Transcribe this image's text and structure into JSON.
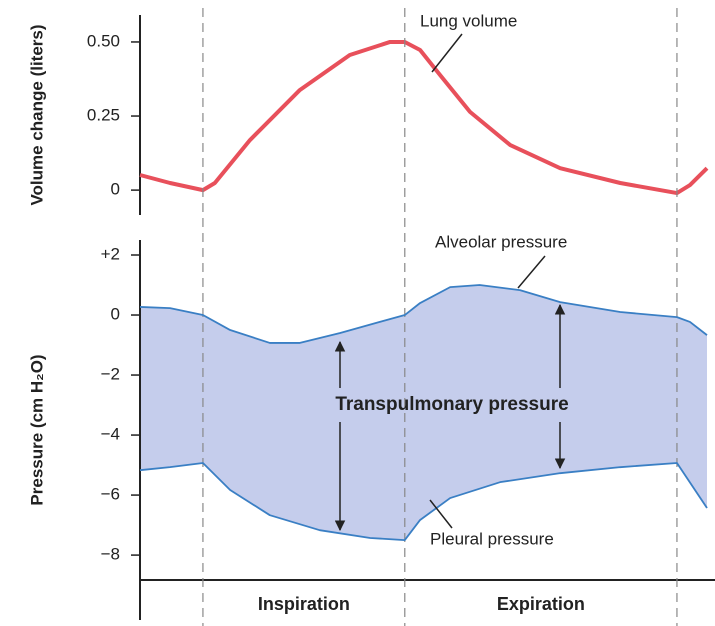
{
  "chart_data": [
    {
      "type": "line",
      "ylabel": "Volume change (liters)",
      "xlim": [
        0,
        100
      ],
      "ylim": [
        -0.084,
        0.591
      ],
      "yticks": [
        0,
        0.25,
        {
          "value": 0.5,
          "label": "0.50"
        }
      ],
      "series": [
        {
          "name": "Lung volume",
          "color": "#e8505b",
          "x": [
            0,
            5.3,
            11.1,
            13.2,
            19.4,
            28.2,
            37.0,
            44.1,
            46.7,
            49.4,
            52.9,
            58.2,
            65.3,
            74.1,
            84.7,
            94.7,
            97.0,
            100
          ],
          "values": [
            0.051,
            0.024,
            0,
            0.024,
            0.169,
            0.338,
            0.456,
            0.5,
            0.5,
            0.473,
            0.389,
            0.264,
            0.152,
            0.074,
            0.024,
            -0.01,
            0.017,
            0.074
          ]
        }
      ]
    },
    {
      "type": "band",
      "ylabel": "Pressure (cm H₂O)",
      "xlim": [
        0,
        100
      ],
      "ylim": [
        -8.83,
        2.5
      ],
      "yticks": [
        {
          "value": 2,
          "label": "+2"
        },
        0,
        {
          "value": -2,
          "label": "−2"
        },
        {
          "value": -4,
          "label": "−4"
        },
        {
          "value": -6,
          "label": "−6"
        },
        {
          "value": -8,
          "label": "−8"
        }
      ],
      "fill_color": "#c5cdec",
      "annotation": "Transpulmonary pressure",
      "categories": [
        "Inspiration",
        "Expiration"
      ],
      "category_bounds": [
        11.1,
        46.7,
        94.7
      ],
      "series": [
        {
          "name": "Alveolar pressure",
          "color": "#3a7fc4",
          "x": [
            0,
            5.3,
            11.1,
            15.9,
            22.9,
            28.2,
            35.3,
            42.3,
            46.7,
            49.4,
            54.7,
            59.9,
            67.0,
            74.1,
            84.7,
            94.7,
            97.0,
            100
          ],
          "values": [
            0.27,
            0.23,
            0,
            -0.5,
            -0.93,
            -0.93,
            -0.6,
            -0.23,
            0,
            0.4,
            0.93,
            1.0,
            0.83,
            0.43,
            0.1,
            -0.07,
            -0.23,
            -0.67
          ]
        },
        {
          "name": "Pleural pressure",
          "color": "#3a7fc4",
          "x": [
            0,
            5.3,
            11.1,
            15.9,
            22.9,
            31.7,
            40.6,
            46.7,
            49.4,
            54.7,
            63.5,
            74.1,
            84.7,
            94.7,
            100
          ],
          "values": [
            -5.17,
            -5.07,
            -4.93,
            -5.83,
            -6.67,
            -7.17,
            -7.43,
            -7.5,
            -6.83,
            -6.1,
            -5.57,
            -5.27,
            -5.07,
            -4.93,
            -6.43
          ]
        }
      ]
    }
  ]
}
